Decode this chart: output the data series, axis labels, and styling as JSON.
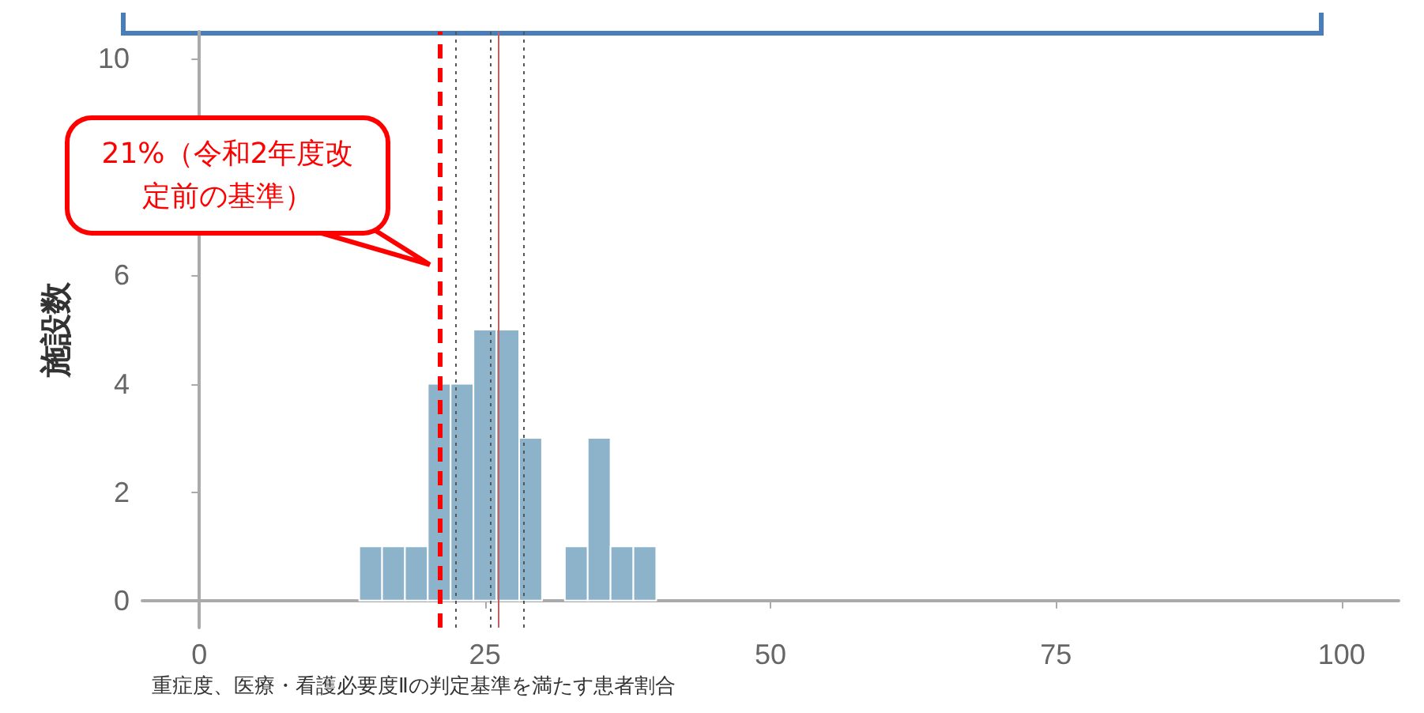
{
  "chart_data": {
    "type": "histogram",
    "xlabel": "重症度、医療・看護必要度Ⅱの判定基準を満たす患者割合",
    "ylabel": "施設数",
    "bins": [
      14,
      16,
      18,
      20,
      22,
      24,
      26,
      28,
      30,
      32,
      34,
      36,
      38,
      40
    ],
    "values": [
      1,
      1,
      1,
      4,
      4,
      5,
      5,
      3,
      0,
      1,
      3,
      1,
      1
    ],
    "color": "#8db3ca",
    "xlim": [
      -5,
      105
    ],
    "xticks": [
      0,
      25,
      50,
      75,
      100
    ],
    "ylim": [
      -0.5,
      10.5
    ],
    "yticks": [
      0,
      2,
      4,
      6,
      {
        "value": 8,
        "label": null
      },
      10
    ],
    "grid": false,
    "ref_lines": [
      {
        "axis": "x",
        "value": 21,
        "label": "21%（令和2年度改定前の基準）",
        "color": "#ff0000",
        "line_style": "dashed"
      },
      {
        "axis": "x",
        "value": 22.4,
        "color": "#555555",
        "line_style": "dotted"
      },
      {
        "axis": "x",
        "value": 25.5,
        "color": "#555555",
        "line_style": "dotted"
      },
      {
        "axis": "x",
        "value": 26.2,
        "color": "#c06060",
        "line_style": "solid"
      },
      {
        "axis": "x",
        "value": 28.4,
        "color": "#555555",
        "line_style": "dotted"
      }
    ]
  }
}
